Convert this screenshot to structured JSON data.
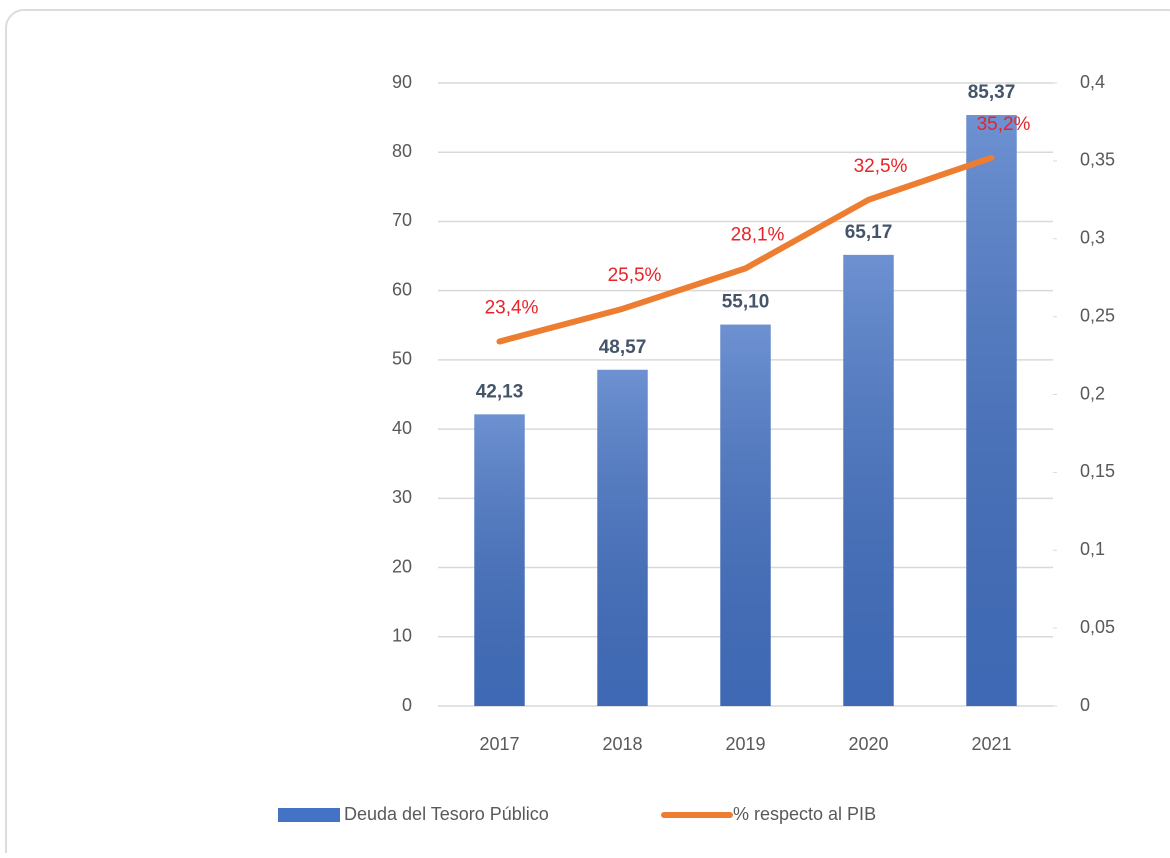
{
  "chart_data": {
    "type": "bar",
    "categories": [
      "2017",
      "2018",
      "2019",
      "2020",
      "2021"
    ],
    "series": [
      {
        "name": "Deuda del Tesoro Público",
        "type": "bar",
        "color": "#4472c4",
        "values": [
          42.13,
          48.57,
          55.1,
          65.17,
          85.37
        ],
        "value_labels": [
          "42,13",
          "48,57",
          "55,10",
          "65,17",
          "85,37"
        ]
      },
      {
        "name": "% respecto al PIB",
        "type": "line",
        "axis": "y2",
        "color": "#ed7d31",
        "label_color": "#e8232a",
        "values": [
          0.234,
          0.255,
          0.281,
          0.325,
          0.352
        ],
        "value_labels": [
          "23,4%",
          "25,5%",
          "28,1%",
          "32,5%",
          "35,2%"
        ]
      }
    ],
    "ylim": [
      0,
      90
    ],
    "yticks": [
      0,
      10,
      20,
      30,
      40,
      50,
      60,
      70,
      80,
      90
    ],
    "y2lim": [
      0,
      0.4
    ],
    "y2ticks": [
      0,
      {
        "value": 0.05,
        "label": "0,05"
      },
      {
        "value": 0.1,
        "label": "0,1"
      },
      {
        "value": 0.15,
        "label": "0,15"
      },
      {
        "value": 0.2,
        "label": "0,2"
      },
      {
        "value": 0.25,
        "label": "0,25"
      },
      {
        "value": 0.3,
        "label": "0,3"
      },
      {
        "value": 0.35,
        "label": "0,35"
      },
      {
        "value": 0.4,
        "label": "0,4"
      }
    ],
    "grid": true,
    "legend": "bottom"
  }
}
